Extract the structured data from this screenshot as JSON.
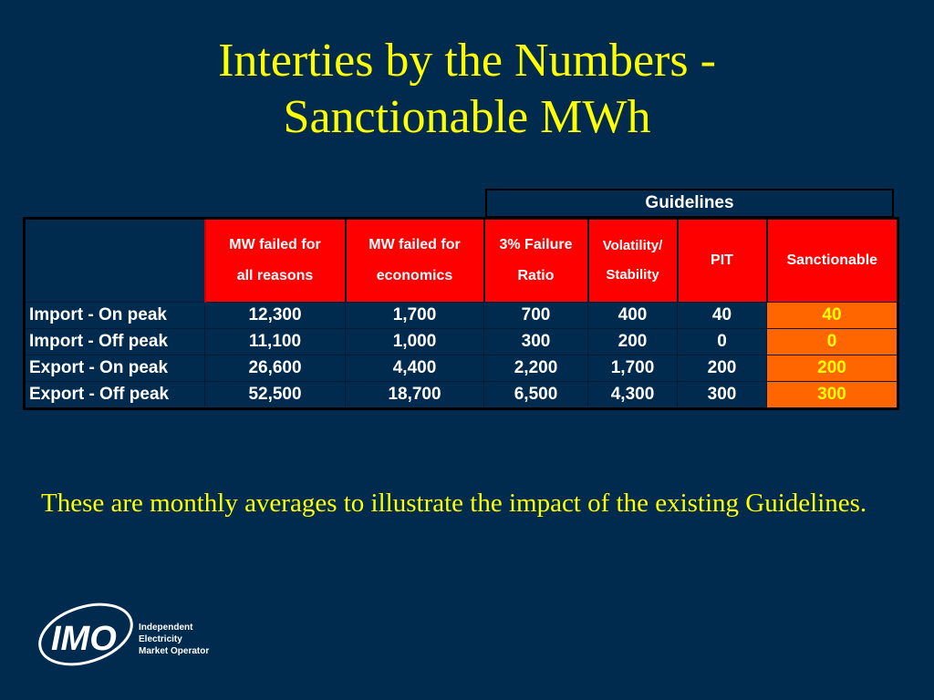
{
  "title": {
    "line1": "Interties by the Numbers -",
    "line2": "Sanctionable MWh"
  },
  "table": {
    "group_header": "Guidelines",
    "columns": [
      {
        "line1": "MW failed for",
        "line2": "all reasons"
      },
      {
        "line1": "MW failed for",
        "line2": "economics"
      },
      {
        "line1": "3% Failure",
        "line2": "Ratio"
      },
      {
        "line1": "Volatility/",
        "line2": "Stability"
      },
      {
        "line1": "PIT",
        "line2": ""
      },
      {
        "line1": "Sanctionable",
        "line2": ""
      }
    ],
    "rows": [
      {
        "label": "Import - On peak",
        "cells": [
          "12,300",
          "1,700",
          "700",
          "400",
          "40",
          "40"
        ]
      },
      {
        "label": "Import - Off peak",
        "cells": [
          "11,100",
          "1,000",
          "300",
          "200",
          "0",
          "0"
        ]
      },
      {
        "label": "Export - On peak",
        "cells": [
          "26,600",
          "4,400",
          "2,200",
          "1,700",
          "200",
          "200"
        ]
      },
      {
        "label": "Export - Off peak",
        "cells": [
          "52,500",
          "18,700",
          "6,500",
          "4,300",
          "300",
          "300"
        ]
      }
    ]
  },
  "note": "These are monthly averages to illustrate the impact of the existing Guidelines.",
  "logo": {
    "mark": "IMO",
    "line1": "Independent",
    "line2": "Electricity",
    "line3": "Market Operator"
  },
  "colors": {
    "background": "#002a4e",
    "title": "#ffff00",
    "header_fill": "#ff0000",
    "sanctionable_fill": "#ff6600"
  }
}
